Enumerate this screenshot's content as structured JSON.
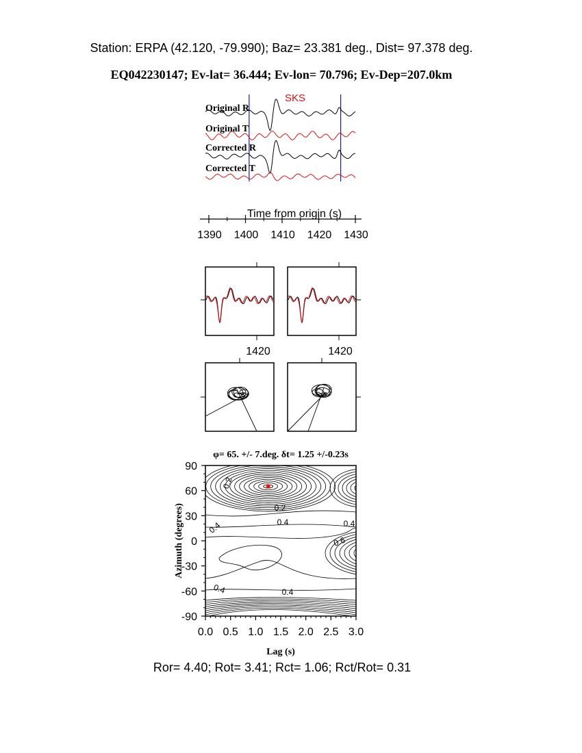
{
  "header": {
    "station_line": "Station: ERPA (42.120,  -79.990); Baz=   23.381 deg., Dist=   97.378 deg.",
    "event_line": "EQ042230147; Ev-lat=  36.444; Ev-lon=  70.796; Ev-Dep=207.0km"
  },
  "footer": {
    "ratios_line": "Ror= 4.40; Rot= 3.41; Rct= 1.06; Rct/Rot= 0.31"
  },
  "colors": {
    "radial": "#000000",
    "transverse": "#dd1111",
    "window_marker": "#1a1aa0",
    "minimum_marker": "#ee1111",
    "phase_label": "#dd1111"
  },
  "chart_data": [
    {
      "type": "line",
      "panel": "seismograms",
      "phase_label": "SKS",
      "xlabel": "Time from origin (s)",
      "xlim": [
        1387,
        1433
      ],
      "xticks": [
        1390,
        1400,
        1410,
        1420,
        1430
      ],
      "x_tick_labels": [
        "1390",
        "1400",
        "1410",
        "1420",
        "1430"
      ],
      "window": [
        1401,
        1426
      ],
      "series": [
        {
          "name": "Original R",
          "color": "#000000"
        },
        {
          "name": "Original T",
          "color": "#dd1111"
        },
        {
          "name": "Corrected R",
          "color": "#000000"
        },
        {
          "name": "Corrected T",
          "color": "#dd1111"
        }
      ]
    },
    {
      "type": "line",
      "panel": "waveform-comparison",
      "x_tick_labels": [
        "1420",
        "1420"
      ]
    },
    {
      "type": "line",
      "panel": "particle-motion"
    },
    {
      "type": "contour",
      "panel": "energy-grid",
      "title": "φ= 65. +/- 7.deg.  δt= 1.25 +/-0.23s",
      "xlabel": "Lag (s)",
      "ylabel": "Azimuth (degrees)",
      "xlim": [
        0.0,
        3.0
      ],
      "ylim": [
        -90,
        90
      ],
      "xticks": [
        "0.0",
        "0.5",
        "1.0",
        "1.5",
        "2.0",
        "2.5",
        "3.0"
      ],
      "yticks": [
        "90",
        "60",
        "30",
        "0",
        "-30",
        "-60",
        "-90"
      ],
      "best_fit": {
        "lag": 1.25,
        "azimuth": 65
      },
      "contour_labels": [
        "0.2",
        "0.2",
        "0.4",
        "0.4",
        "0.4",
        "0.6",
        "0.4",
        "0.4"
      ]
    }
  ]
}
